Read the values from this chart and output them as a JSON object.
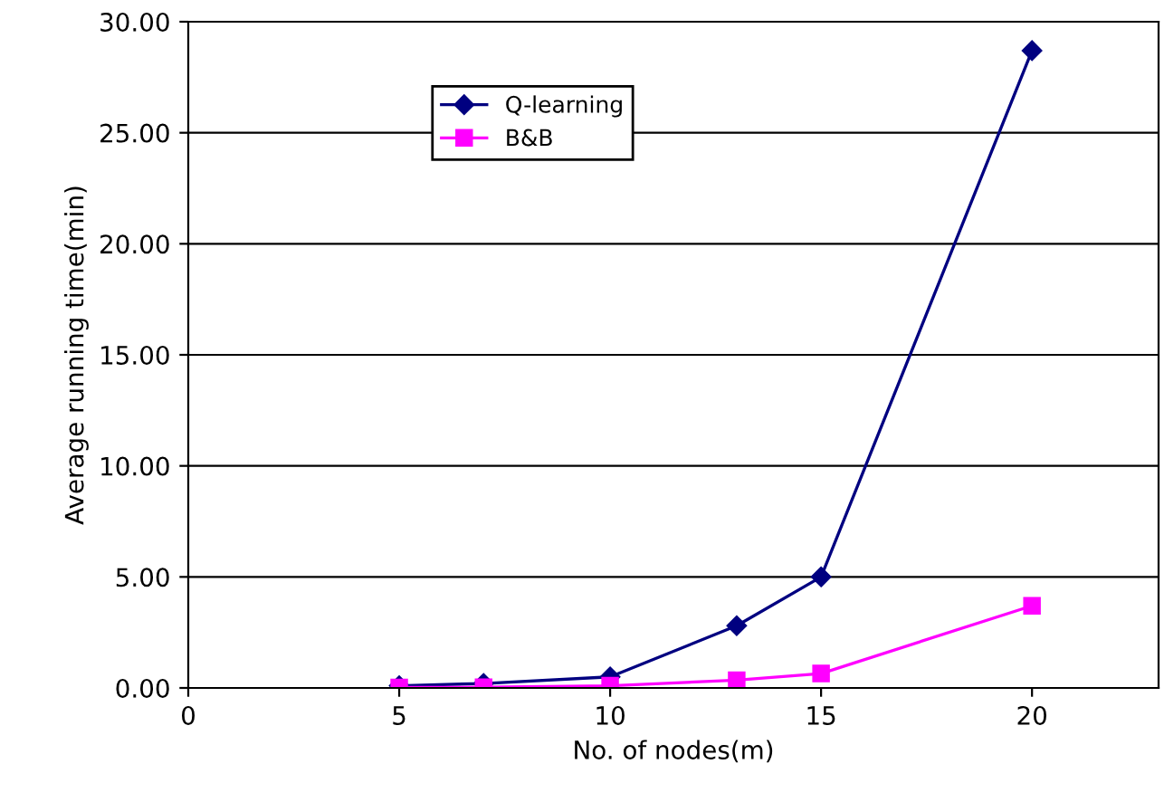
{
  "chart_data": {
    "type": "line",
    "xlabel": "No. of nodes(m)",
    "ylabel": "Average running time(min)",
    "series": [
      {
        "name": "Q-learning",
        "color": "#000080",
        "marker": "diamond",
        "x": [
          5,
          7,
          10,
          13,
          15,
          20
        ],
        "values": [
          0.1,
          0.2,
          0.5,
          2.8,
          5.0,
          28.7
        ]
      },
      {
        "name": "B&B",
        "color": "#ff00ff",
        "marker": "square",
        "x": [
          5,
          7,
          10,
          13,
          15,
          20
        ],
        "values": [
          0.02,
          0.03,
          0.1,
          0.35,
          0.65,
          3.7
        ]
      }
    ],
    "xlim": [
      0,
      23
    ],
    "xticks": [
      0,
      5,
      10,
      15,
      20
    ],
    "ylim": [
      0,
      30
    ],
    "yticks": [
      {
        "value": 0,
        "label": "0.00"
      },
      {
        "value": 5,
        "label": "5.00"
      },
      {
        "value": 10,
        "label": "10.00"
      },
      {
        "value": 15,
        "label": "15.00"
      },
      {
        "value": 20,
        "label": "20.00"
      },
      {
        "value": 25,
        "label": "25.00"
      },
      {
        "value": 30,
        "label": "30.00"
      }
    ],
    "grid": "y",
    "legend": "top left"
  }
}
